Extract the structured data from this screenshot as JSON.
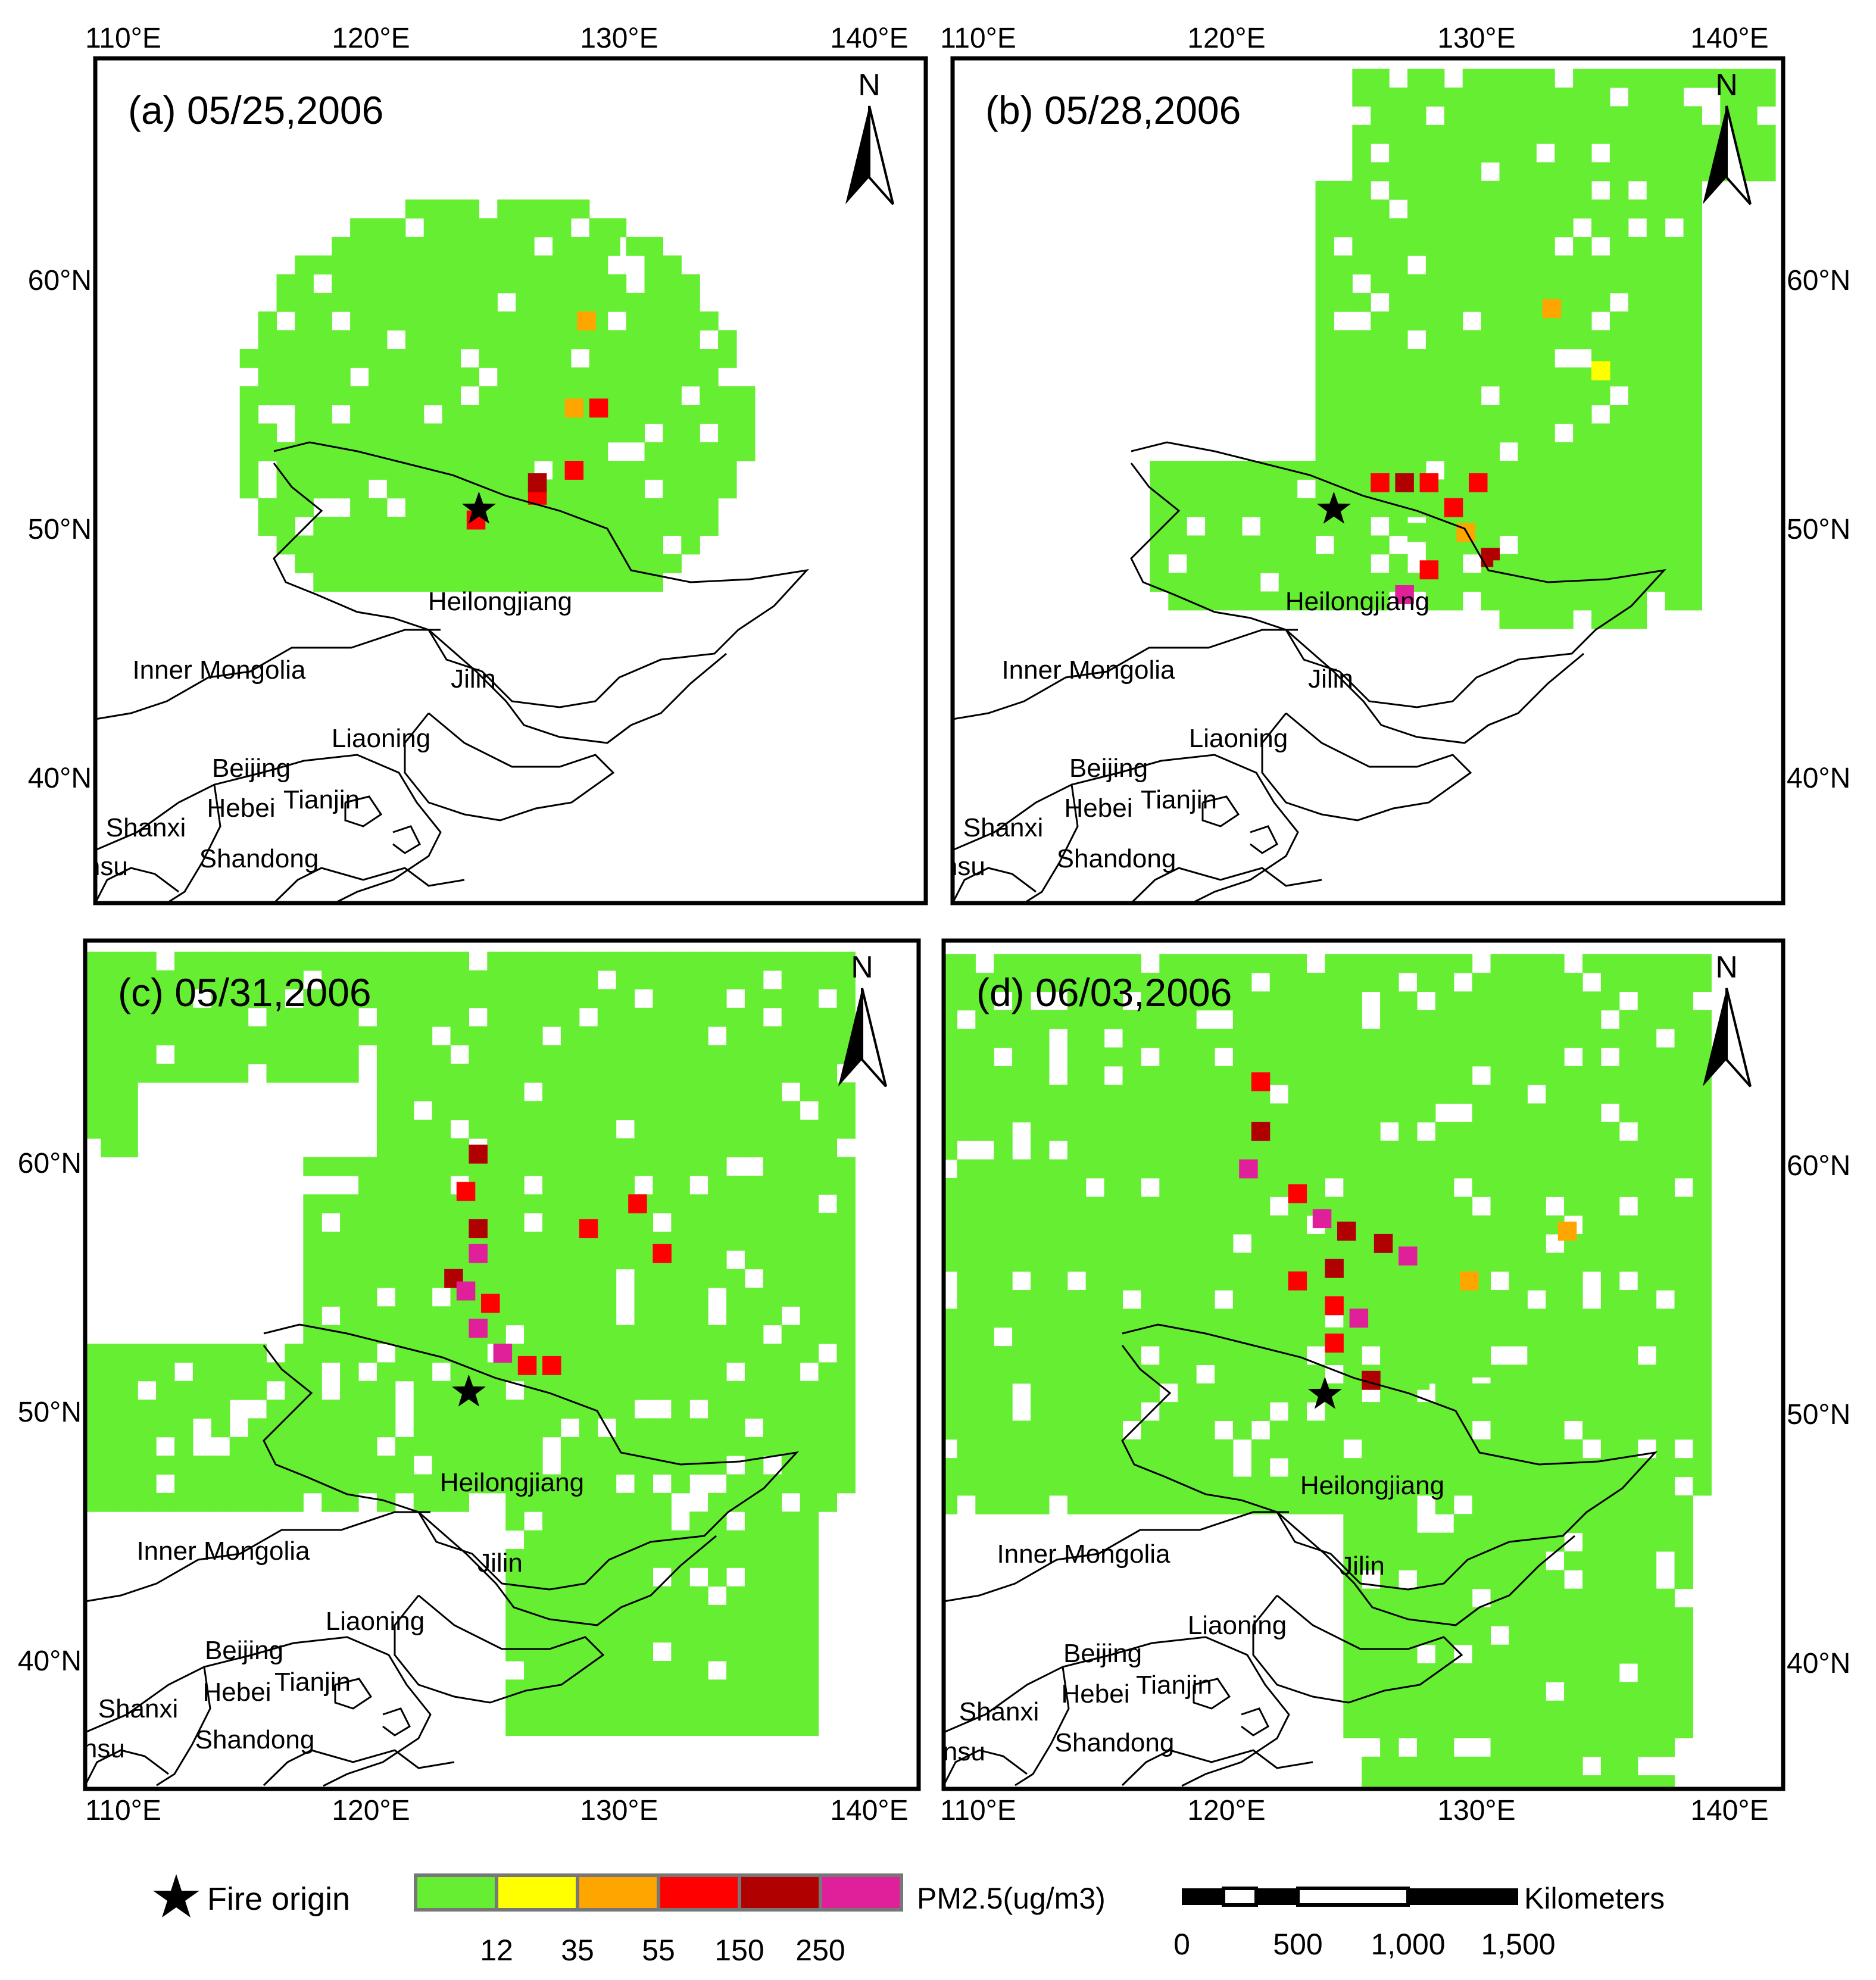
{
  "panels": [
    {
      "title": "(a) 05/25,2006",
      "top_ticks": [
        "110°E",
        "120°E",
        "130°E",
        "140°E"
      ],
      "bottom_ticks": [],
      "left_ticks": [
        "60°N",
        "50°N",
        "40°N"
      ],
      "right_ticks": [],
      "north_label": "N",
      "fire_origin": {
        "lon": 124.5,
        "lat": 50.8
      },
      "hotspots": [
        {
          "lon": 124.0,
          "lat": 50.0,
          "level": 4
        },
        {
          "lon": 124.5,
          "lat": 50.5,
          "level": 1
        },
        {
          "lon": 126.5,
          "lat": 51.0,
          "level": 4
        },
        {
          "lon": 126.5,
          "lat": 51.5,
          "level": 5
        },
        {
          "lon": 128.0,
          "lat": 52.0,
          "level": 4
        },
        {
          "lon": 129.0,
          "lat": 54.5,
          "level": 4
        },
        {
          "lon": 128.0,
          "lat": 54.5,
          "level": 3
        },
        {
          "lon": 128.5,
          "lat": 58.0,
          "level": 3
        },
        {
          "lon": 126.0,
          "lat": 60.0,
          "level": 1
        },
        {
          "lon": 129.5,
          "lat": 61.0,
          "level": 1
        },
        {
          "lon": 124.0,
          "lat": 51.5,
          "level": 1
        },
        {
          "lon": 128.0,
          "lat": 53.5,
          "level": 1
        }
      ]
    },
    {
      "title": "(b) 05/28,2006",
      "top_ticks": [
        "110°E",
        "120°E",
        "130°E",
        "140°E"
      ],
      "bottom_ticks": [],
      "left_ticks": [],
      "right_ticks": [
        "60°N",
        "50°N",
        "40°N"
      ],
      "north_label": "N",
      "fire_origin": {
        "lon": 124.5,
        "lat": 50.8
      },
      "hotspots": [
        {
          "lon": 126.0,
          "lat": 51.5,
          "level": 4
        },
        {
          "lon": 127.0,
          "lat": 51.5,
          "level": 5
        },
        {
          "lon": 128.0,
          "lat": 51.5,
          "level": 4
        },
        {
          "lon": 130.0,
          "lat": 51.5,
          "level": 4
        },
        {
          "lon": 129.0,
          "lat": 50.5,
          "level": 4
        },
        {
          "lon": 129.5,
          "lat": 49.5,
          "level": 3
        },
        {
          "lon": 130.5,
          "lat": 48.5,
          "level": 5
        },
        {
          "lon": 128.0,
          "lat": 48.0,
          "level": 4
        },
        {
          "lon": 127.0,
          "lat": 47.0,
          "level": 6
        },
        {
          "lon": 127.5,
          "lat": 49.5,
          "level": 1
        },
        {
          "lon": 131.0,
          "lat": 48.0,
          "level": 1
        },
        {
          "lon": 133.0,
          "lat": 58.5,
          "level": 3
        },
        {
          "lon": 135.0,
          "lat": 56.0,
          "level": 2
        }
      ]
    },
    {
      "title": "(c) 05/31,2006",
      "top_ticks": [],
      "bottom_ticks": [
        "110°E",
        "120°E",
        "130°E",
        "140°E"
      ],
      "left_ticks": [
        "60°N",
        "50°N",
        "40°N"
      ],
      "right_ticks": [],
      "north_label": "N",
      "fire_origin": {
        "lon": 124.5,
        "lat": 50.8
      },
      "hotspots": [
        {
          "lon": 124.5,
          "lat": 60.0,
          "level": 5
        },
        {
          "lon": 124.0,
          "lat": 58.5,
          "level": 4
        },
        {
          "lon": 124.5,
          "lat": 57.0,
          "level": 5
        },
        {
          "lon": 124.5,
          "lat": 56.0,
          "level": 6
        },
        {
          "lon": 123.5,
          "lat": 55.0,
          "level": 5
        },
        {
          "lon": 124.0,
          "lat": 54.5,
          "level": 6
        },
        {
          "lon": 125.0,
          "lat": 54.0,
          "level": 4
        },
        {
          "lon": 124.5,
          "lat": 53.0,
          "level": 6
        },
        {
          "lon": 125.5,
          "lat": 52.0,
          "level": 6
        },
        {
          "lon": 126.5,
          "lat": 51.5,
          "level": 4
        },
        {
          "lon": 127.5,
          "lat": 51.5,
          "level": 4
        },
        {
          "lon": 129.0,
          "lat": 57.0,
          "level": 4
        },
        {
          "lon": 132.0,
          "lat": 56.0,
          "level": 4
        },
        {
          "lon": 131.0,
          "lat": 58.0,
          "level": 4
        },
        {
          "lon": 128.0,
          "lat": 50.0,
          "level": 1
        },
        {
          "lon": 132.5,
          "lat": 51.5,
          "level": 1
        }
      ]
    },
    {
      "title": "(d) 06/03,2006",
      "top_ticks": [],
      "bottom_ticks": [
        "110°E",
        "120°E",
        "130°E",
        "140°E"
      ],
      "left_ticks": [],
      "right_ticks": [
        "60°N",
        "50°N",
        "40°N"
      ],
      "north_label": "N",
      "fire_origin": {
        "lon": 124.5,
        "lat": 50.8
      },
      "hotspots": [
        {
          "lon": 121.5,
          "lat": 63.0,
          "level": 4
        },
        {
          "lon": 121.5,
          "lat": 61.0,
          "level": 5
        },
        {
          "lon": 121.0,
          "lat": 59.5,
          "level": 6
        },
        {
          "lon": 123.0,
          "lat": 58.5,
          "level": 4
        },
        {
          "lon": 124.0,
          "lat": 57.5,
          "level": 6
        },
        {
          "lon": 125.0,
          "lat": 57.0,
          "level": 5
        },
        {
          "lon": 126.5,
          "lat": 56.5,
          "level": 5
        },
        {
          "lon": 127.5,
          "lat": 56.0,
          "level": 6
        },
        {
          "lon": 124.5,
          "lat": 55.5,
          "level": 5
        },
        {
          "lon": 123.0,
          "lat": 55.0,
          "level": 4
        },
        {
          "lon": 124.5,
          "lat": 54.0,
          "level": 4
        },
        {
          "lon": 124.5,
          "lat": 52.5,
          "level": 4
        },
        {
          "lon": 126.0,
          "lat": 51.0,
          "level": 5
        },
        {
          "lon": 125.5,
          "lat": 53.5,
          "level": 6
        },
        {
          "lon": 128.0,
          "lat": 51.0,
          "level": 1
        },
        {
          "lon": 130.5,
          "lat": 51.5,
          "level": 1
        },
        {
          "lon": 134.0,
          "lat": 57.0,
          "level": 3
        },
        {
          "lon": 130.0,
          "lat": 55.0,
          "level": 3
        }
      ]
    }
  ],
  "province_labels": [
    "Heilongjiang",
    "Inner Mongolia",
    "Jilin",
    "Liaoning",
    "Beijing",
    "Hebei",
    "Tianjin",
    "Shanxi",
    "Shandong",
    "Gansu"
  ],
  "legend": {
    "fire_origin_label": "Fire origin",
    "pm_label": "PM2.5(ug/m3)",
    "pm_ticks": [
      "12",
      "35",
      "55",
      "150",
      "250"
    ],
    "pm_colors": [
      "#66ee33",
      "#ffff00",
      "#ffa500",
      "#ff0000",
      "#b00000",
      "#e0209a"
    ],
    "scale_label": "Kilometers",
    "scale_ticks": [
      "0",
      "500",
      "1,000",
      "1,500"
    ]
  },
  "colors": {
    "background_pm": "#66ee33",
    "frame": "#000000"
  }
}
